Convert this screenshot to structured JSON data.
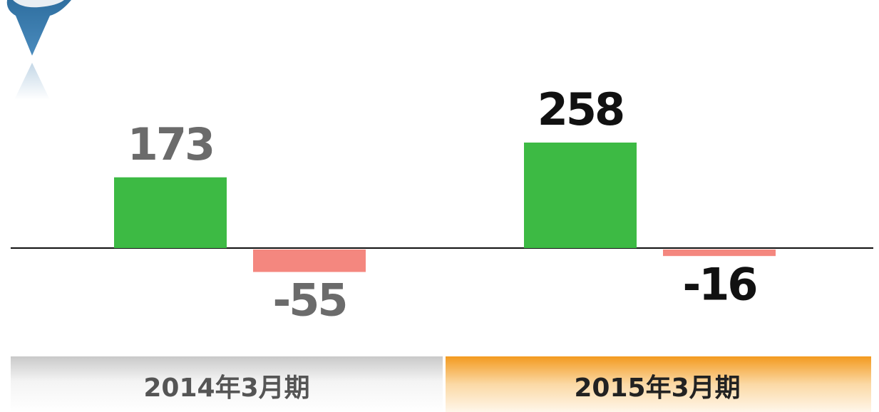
{
  "chart_data": {
    "type": "bar",
    "categories": [
      "2014年3月期",
      "2015年3月期"
    ],
    "series": [
      {
        "color": "#3dba44",
        "values": [
          173,
          258
        ]
      },
      {
        "color": "#f4877f",
        "values": [
          -55,
          -16
        ]
      }
    ]
  }
}
